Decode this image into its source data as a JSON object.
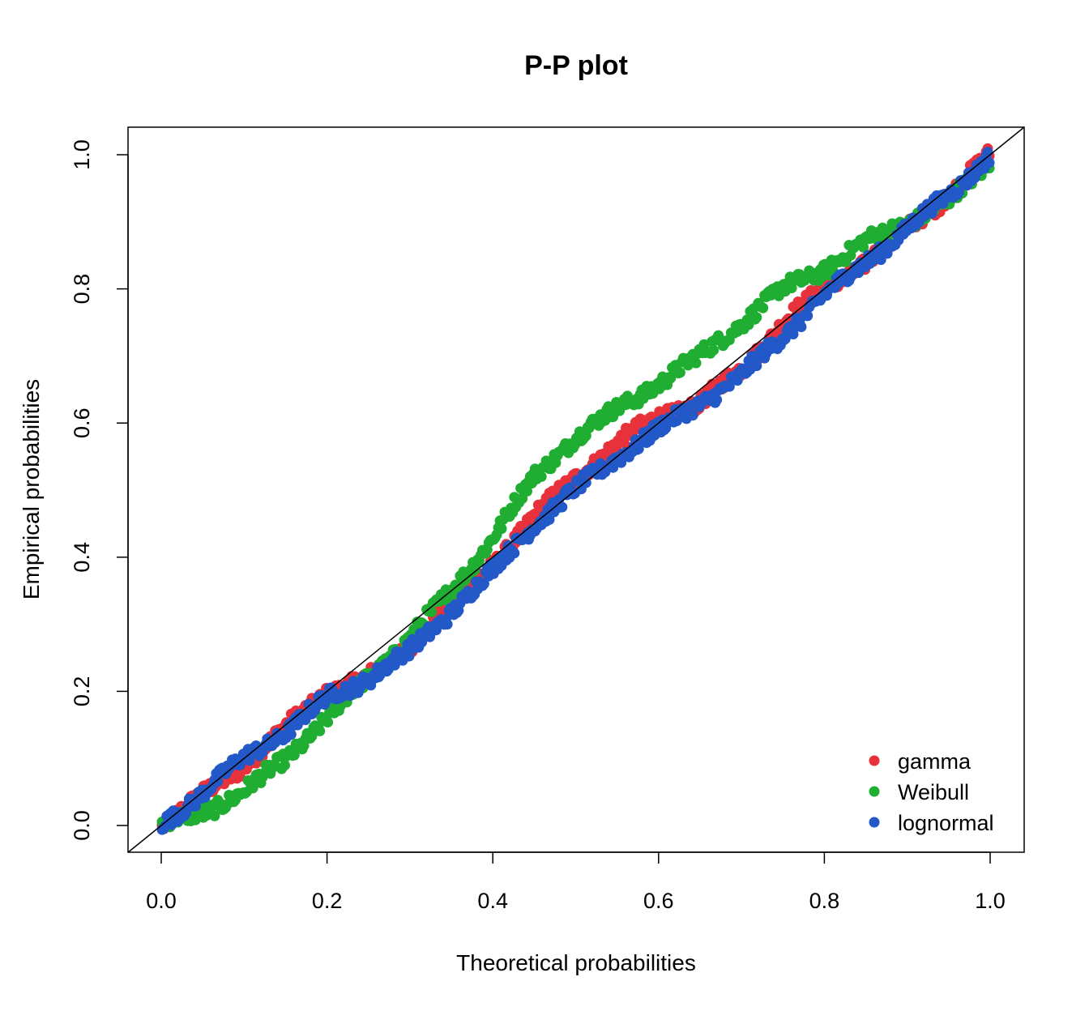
{
  "chart_data": {
    "type": "scatter",
    "title": "P-P plot",
    "xlabel": "Theoretical probabilities",
    "ylabel": "Empirical probabilities",
    "xlim": [
      -0.04,
      1.04
    ],
    "ylim": [
      -0.04,
      1.04
    ],
    "x_ticks": [
      0.0,
      0.2,
      0.4,
      0.6,
      0.8,
      1.0
    ],
    "y_ticks": [
      0.0,
      0.2,
      0.4,
      0.6,
      0.8,
      1.0
    ],
    "x_tick_labels": [
      "0.0",
      "0.2",
      "0.4",
      "0.6",
      "0.8",
      "1.0"
    ],
    "y_tick_labels": [
      "0.0",
      "0.2",
      "0.4",
      "0.6",
      "0.8",
      "1.0"
    ],
    "grid": false,
    "legend_position": "bottom-right",
    "reference_line": {
      "from": [
        0,
        0
      ],
      "to": [
        1,
        1
      ]
    },
    "series": [
      {
        "name": "gamma",
        "color": "#e8323b",
        "curve": [
          [
            0,
            0
          ],
          [
            0.1,
            0.09
          ],
          [
            0.2,
            0.2
          ],
          [
            0.25,
            0.22
          ],
          [
            0.3,
            0.27
          ],
          [
            0.35,
            0.33
          ],
          [
            0.4,
            0.39
          ],
          [
            0.45,
            0.46
          ],
          [
            0.5,
            0.52
          ],
          [
            0.55,
            0.57
          ],
          [
            0.6,
            0.61
          ],
          [
            0.65,
            0.63
          ],
          [
            0.7,
            0.68
          ],
          [
            0.75,
            0.75
          ],
          [
            0.8,
            0.8
          ],
          [
            0.85,
            0.84
          ],
          [
            0.9,
            0.89
          ],
          [
            0.95,
            0.94
          ],
          [
            1.0,
            1.0
          ]
        ]
      },
      {
        "name": "Weibull",
        "color": "#1fad32",
        "curve": [
          [
            0,
            0
          ],
          [
            0.05,
            0.02
          ],
          [
            0.1,
            0.05
          ],
          [
            0.15,
            0.1
          ],
          [
            0.2,
            0.16
          ],
          [
            0.25,
            0.22
          ],
          [
            0.3,
            0.28
          ],
          [
            0.35,
            0.35
          ],
          [
            0.4,
            0.43
          ],
          [
            0.45,
            0.52
          ],
          [
            0.5,
            0.58
          ],
          [
            0.55,
            0.62
          ],
          [
            0.6,
            0.66
          ],
          [
            0.65,
            0.7
          ],
          [
            0.7,
            0.75
          ],
          [
            0.75,
            0.8
          ],
          [
            0.8,
            0.83
          ],
          [
            0.85,
            0.87
          ],
          [
            0.9,
            0.9
          ],
          [
            0.95,
            0.93
          ],
          [
            1.0,
            0.99
          ]
        ]
      },
      {
        "name": "lognormal",
        "color": "#2258c7",
        "curve": [
          [
            0,
            0
          ],
          [
            0.05,
            0.05
          ],
          [
            0.1,
            0.1
          ],
          [
            0.15,
            0.14
          ],
          [
            0.2,
            0.19
          ],
          [
            0.25,
            0.22
          ],
          [
            0.3,
            0.26
          ],
          [
            0.35,
            0.32
          ],
          [
            0.4,
            0.38
          ],
          [
            0.45,
            0.45
          ],
          [
            0.5,
            0.5
          ],
          [
            0.55,
            0.55
          ],
          [
            0.6,
            0.59
          ],
          [
            0.65,
            0.63
          ],
          [
            0.7,
            0.67
          ],
          [
            0.75,
            0.73
          ],
          [
            0.8,
            0.79
          ],
          [
            0.85,
            0.84
          ],
          [
            0.9,
            0.89
          ],
          [
            0.95,
            0.94
          ],
          [
            1.0,
            1.0
          ]
        ]
      }
    ]
  }
}
